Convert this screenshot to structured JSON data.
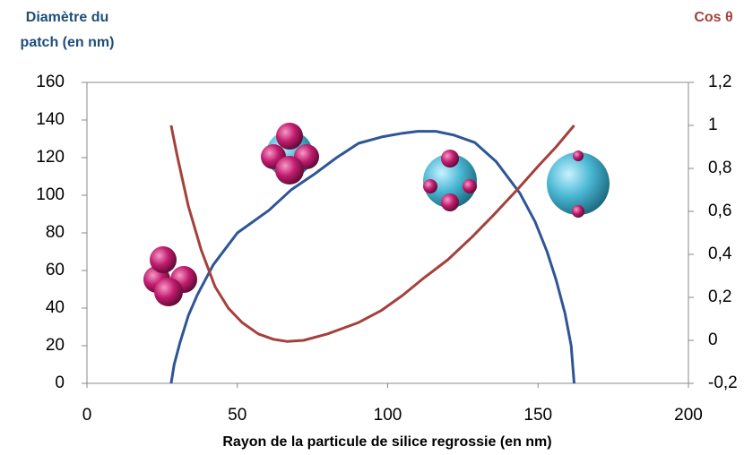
{
  "chart_data": {
    "type": "line",
    "xlabel": "Rayon de la particule de silice regrossie (en nm)",
    "ylabel": [
      "Diamètre du",
      "patch (en nm)"
    ],
    "y2label": "Cos θ",
    "xlim": [
      0,
      200
    ],
    "xticks": [
      0,
      50,
      100,
      150,
      200
    ],
    "ylim": [
      0,
      160
    ],
    "yticks": [
      0,
      20,
      40,
      60,
      80,
      100,
      120,
      140,
      160
    ],
    "y2lim": [
      -0.2,
      1.2
    ],
    "y2ticks": [
      {
        "value": -0.2,
        "label": "-0,2"
      },
      0,
      {
        "value": 0.2,
        "label": "0,2"
      },
      {
        "value": 0.4,
        "label": "0,4"
      },
      {
        "value": 0.6,
        "label": "0,6"
      },
      {
        "value": 0.8,
        "label": "0,8"
      },
      1,
      {
        "value": 1.2,
        "label": "1,2"
      }
    ],
    "series": [
      {
        "color": "#2f5597",
        "x": [
          28,
          29,
          31,
          33.7,
          36.7,
          42,
          50,
          60.5,
          68,
          75.4,
          83,
          90.3,
          98,
          105,
          110,
          116,
          122,
          129,
          136,
          144,
          149,
          153,
          156,
          159,
          161,
          162
        ],
        "values": [
          0,
          10,
          22,
          36,
          47,
          63,
          80,
          92,
          103,
          111,
          120,
          127.6,
          131,
          133,
          134,
          134,
          132,
          128,
          118,
          101,
          86,
          70,
          55,
          37,
          20,
          0
        ]
      },
      {
        "color": "#a5403b",
        "axis": "y2",
        "x": [
          28,
          30,
          33.7,
          38,
          42.6,
          47,
          51.6,
          57,
          62,
          66.5,
          72,
          80,
          90.3,
          98,
          105,
          112,
          120,
          128,
          135,
          143,
          150,
          156,
          162
        ],
        "values": [
          1,
          0.86,
          0.625,
          0.42,
          0.25,
          0.15,
          0.083,
          0.03,
          0.005,
          -0.005,
          0,
          0.03,
          0.083,
          0.14,
          0.21,
          0.29,
          0.375,
          0.48,
          0.58,
          0.7,
          0.81,
          0.9,
          1
        ]
      }
    ]
  }
}
